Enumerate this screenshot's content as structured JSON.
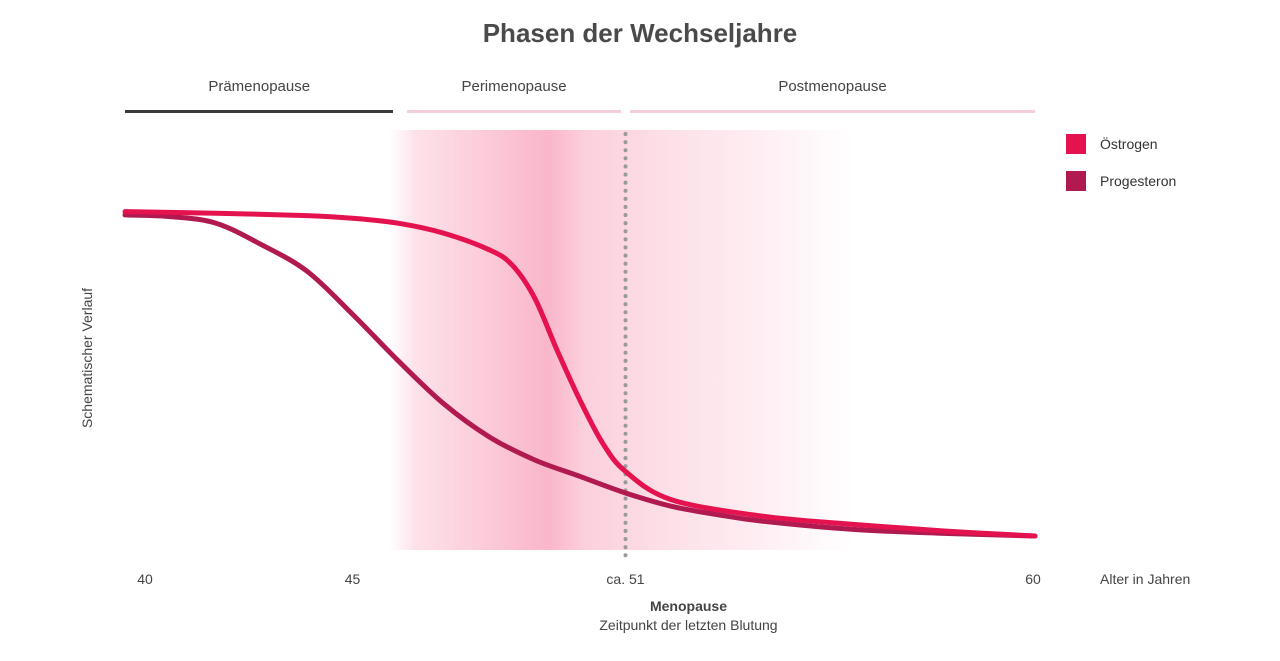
{
  "chart_data": {
    "type": "line",
    "title": "Phasen der Wechseljahre",
    "ylabel": "Schematischer Verlauf",
    "xlabel": "Alter in Jahren",
    "x_ticks": [
      {
        "value": 40,
        "label": "40"
      },
      {
        "value": 45,
        "label": "45"
      },
      {
        "value": 51,
        "label": "ca. 51"
      },
      {
        "value": 60,
        "label": "60"
      }
    ],
    "xlim": [
      40,
      60
    ],
    "ylim": [
      0,
      100
    ],
    "phases": [
      {
        "name": "Prämenopause",
        "start": 40,
        "end": 45.9,
        "color": "#3a3a3a"
      },
      {
        "name": "Perimenopause",
        "start": 46.2,
        "end": 50.9,
        "color": "#f3cfd9"
      },
      {
        "name": "Postmenopause",
        "start": 51.1,
        "end": 60,
        "color": "#f3cfd9"
      }
    ],
    "shaded_region": {
      "start": 45.8,
      "end": 56,
      "peak": 49.3,
      "color": "#f9a9c0"
    },
    "annotation": {
      "x": 51,
      "title": "Menopause",
      "subtitle": "Zeitpunkt der letzten Blutung"
    },
    "legend_position": "top-right",
    "series": [
      {
        "name": "Östrogen",
        "color": "#e4124f",
        "x": [
          40,
          42,
          44,
          45,
          46,
          47,
          48,
          48.5,
          49,
          49.5,
          50,
          50.5,
          51,
          52,
          54,
          56,
          58,
          60
        ],
        "y": [
          98,
          97.5,
          96.8,
          96,
          94.5,
          91.5,
          86.5,
          82,
          72,
          56,
          41,
          28,
          19.5,
          11,
          6,
          3.5,
          1.5,
          0
        ]
      },
      {
        "name": "Progesteron",
        "color": "#b11a50",
        "x": [
          40,
          41,
          42,
          43,
          44,
          45,
          46,
          47,
          48,
          49,
          50,
          51,
          52,
          53,
          54,
          56,
          58,
          60
        ],
        "y": [
          97,
          96.5,
          94.5,
          88,
          80,
          67,
          53,
          40,
          30,
          23,
          18,
          13,
          9,
          6.5,
          4.5,
          2,
          0.8,
          0
        ]
      }
    ]
  }
}
